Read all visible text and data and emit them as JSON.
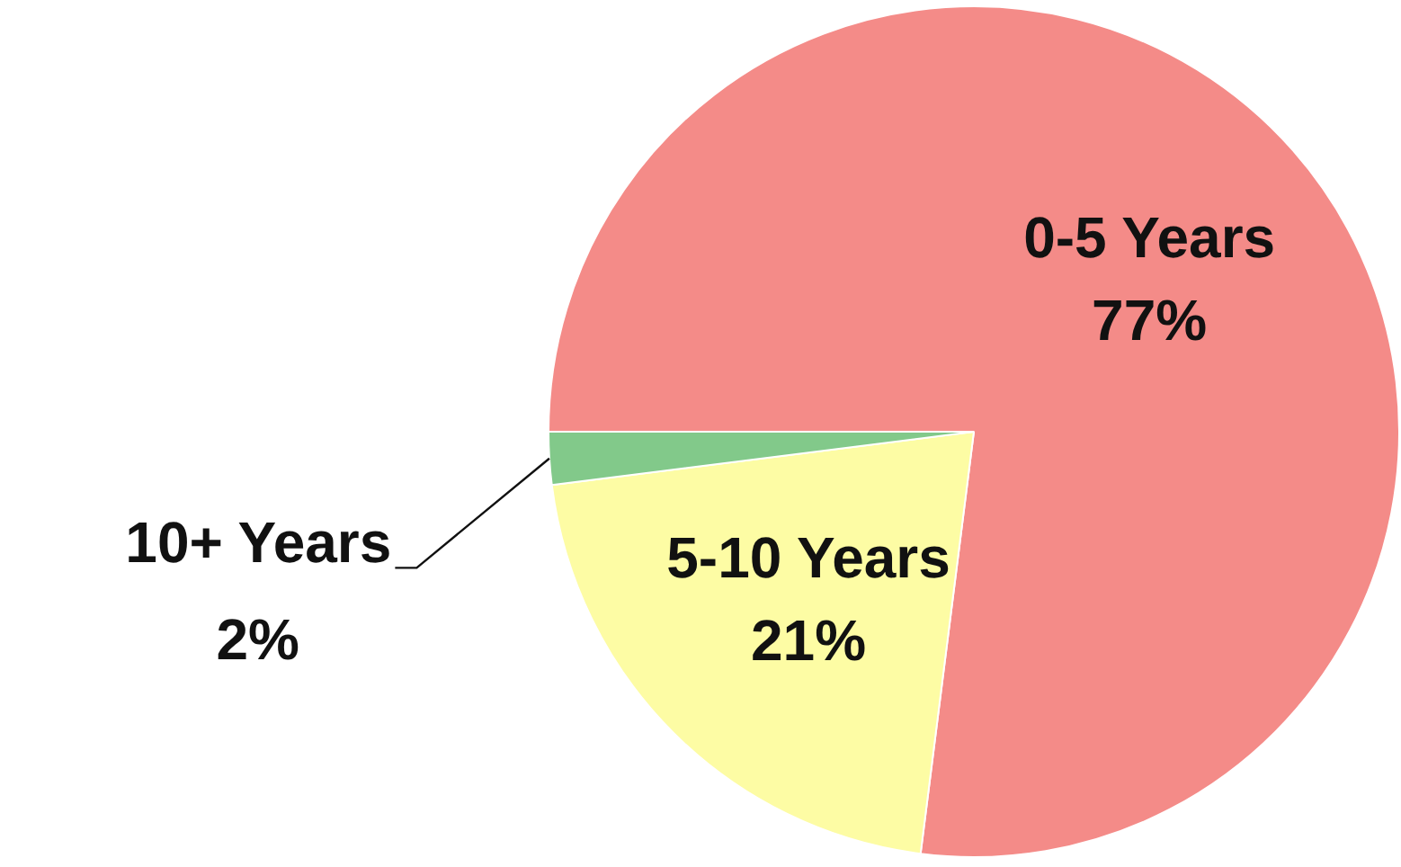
{
  "chart_data": {
    "type": "pie",
    "categories": [
      "0-5 Years",
      "5-10 Years",
      "10+ Years"
    ],
    "values": [
      77,
      21,
      2
    ],
    "colors": [
      "#f48b88",
      "#fdfca4",
      "#82c98a"
    ],
    "value_labels": [
      "77%",
      "21%",
      "2%"
    ],
    "legend": false
  }
}
